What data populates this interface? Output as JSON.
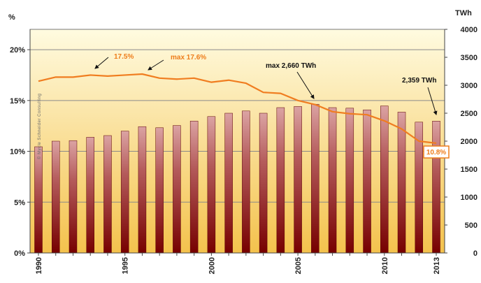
{
  "chart_data": {
    "type": "bar+line",
    "left_axis_unit": "%",
    "right_axis_unit": "TWh",
    "left_ticks": [
      "0%",
      "5%",
      "10%",
      "15%",
      "20%"
    ],
    "right_ticks": [
      "0",
      "500",
      "1000",
      "1500",
      "2000",
      "2500",
      "3000",
      "3500",
      "4000"
    ],
    "x_tick_labels": [
      "1990",
      "1995",
      "2000",
      "2005",
      "2010",
      "2013"
    ],
    "ylim_left": [
      0,
      22
    ],
    "ylim_right": [
      0,
      4000
    ],
    "x": [
      1990,
      1991,
      1992,
      1993,
      1994,
      1995,
      1996,
      1997,
      1998,
      1999,
      2000,
      2001,
      2002,
      2003,
      2004,
      2005,
      2006,
      2007,
      2008,
      2009,
      2010,
      2011,
      2012,
      2013
    ],
    "bars_twh": [
      1900,
      2000,
      2010,
      2070,
      2100,
      2180,
      2260,
      2240,
      2280,
      2360,
      2440,
      2500,
      2540,
      2500,
      2600,
      2620,
      2660,
      2600,
      2590,
      2560,
      2630,
      2520,
      2340,
      2359
    ],
    "line_share_percent": [
      16.9,
      17.3,
      17.3,
      17.5,
      17.4,
      17.5,
      17.6,
      17.2,
      17.1,
      17.2,
      16.8,
      17.0,
      16.7,
      15.8,
      15.7,
      15.0,
      14.6,
      13.9,
      13.7,
      13.6,
      13.0,
      12.2,
      11.0,
      10.8
    ],
    "grid": true,
    "annotations": {
      "peak_share_1993": "17.5%",
      "peak_share_1996": "max 17.6%",
      "peak_twh": "max 2,660 TWh",
      "last_twh": "2,359 TWh",
      "last_share": "10.8%"
    },
    "credit": "© Mycle Schneider Consulting",
    "colors": {
      "bar_top": "#d89a9a",
      "bar_bottom": "#7a0000",
      "line": "#f07d20",
      "bg_top": "#fffbe0",
      "bg_bottom": "#f4c24d"
    }
  }
}
